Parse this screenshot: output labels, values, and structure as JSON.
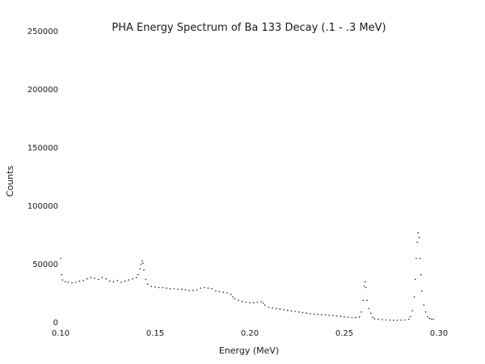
{
  "chart_data": {
    "type": "scatter",
    "title": "PHA Energy Spectrum of Ba 133 Decay (.1 - .3 MeV)",
    "xlabel": "Energy (MeV)",
    "ylabel": "Counts",
    "xlim": [
      0.1,
      0.3
    ],
    "ylim": [
      0,
      250000
    ],
    "x_ticks": [
      "0.10",
      "0.15",
      "0.20",
      "0.25",
      "0.30"
    ],
    "y_ticks": [
      "0",
      "50000",
      "100000",
      "150000",
      "200000",
      "250000"
    ],
    "grid": false,
    "legend": "none",
    "marker_color": "#222222",
    "series": [
      {
        "points": [
          [
            0.1,
            58000
          ],
          [
            0.1005,
            44000
          ],
          [
            0.101,
            39500
          ],
          [
            0.1025,
            38000
          ],
          [
            0.104,
            37500
          ],
          [
            0.106,
            37000
          ],
          [
            0.108,
            37500
          ],
          [
            0.11,
            38500
          ],
          [
            0.112,
            39000
          ],
          [
            0.114,
            40500
          ],
          [
            0.116,
            41500
          ],
          [
            0.118,
            41000
          ],
          [
            0.12,
            40000
          ],
          [
            0.122,
            41500
          ],
          [
            0.124,
            40500
          ],
          [
            0.126,
            38500
          ],
          [
            0.128,
            38000
          ],
          [
            0.13,
            39000
          ],
          [
            0.132,
            37500
          ],
          [
            0.134,
            38500
          ],
          [
            0.136,
            39500
          ],
          [
            0.138,
            40500
          ],
          [
            0.14,
            41500
          ],
          [
            0.141,
            44000
          ],
          [
            0.142,
            49000
          ],
          [
            0.1425,
            53000
          ],
          [
            0.143,
            56000
          ],
          [
            0.1435,
            54000
          ],
          [
            0.144,
            48000
          ],
          [
            0.145,
            40000
          ],
          [
            0.146,
            36000
          ],
          [
            0.148,
            34000
          ],
          [
            0.15,
            33500
          ],
          [
            0.152,
            33000
          ],
          [
            0.154,
            33000
          ],
          [
            0.156,
            32500
          ],
          [
            0.158,
            32000
          ],
          [
            0.16,
            32000
          ],
          [
            0.162,
            31500
          ],
          [
            0.164,
            31500
          ],
          [
            0.166,
            31000
          ],
          [
            0.168,
            30500
          ],
          [
            0.17,
            30500
          ],
          [
            0.172,
            31000
          ],
          [
            0.174,
            32500
          ],
          [
            0.176,
            33000
          ],
          [
            0.178,
            32500
          ],
          [
            0.18,
            32000
          ],
          [
            0.182,
            30000
          ],
          [
            0.184,
            29500
          ],
          [
            0.186,
            29000
          ],
          [
            0.188,
            28500
          ],
          [
            0.19,
            27000
          ],
          [
            0.191,
            25000
          ],
          [
            0.192,
            23500
          ],
          [
            0.194,
            22000
          ],
          [
            0.196,
            21000
          ],
          [
            0.198,
            20500
          ],
          [
            0.2,
            20000
          ],
          [
            0.202,
            20000
          ],
          [
            0.204,
            20500
          ],
          [
            0.206,
            21000
          ],
          [
            0.207,
            19500
          ],
          [
            0.208,
            18000
          ],
          [
            0.21,
            16000
          ],
          [
            0.212,
            15500
          ],
          [
            0.214,
            15000
          ],
          [
            0.216,
            14500
          ],
          [
            0.218,
            14000
          ],
          [
            0.22,
            13500
          ],
          [
            0.222,
            13000
          ],
          [
            0.224,
            12500
          ],
          [
            0.226,
            12000
          ],
          [
            0.228,
            11500
          ],
          [
            0.23,
            11000
          ],
          [
            0.232,
            10500
          ],
          [
            0.234,
            10200
          ],
          [
            0.236,
            10000
          ],
          [
            0.238,
            9800
          ],
          [
            0.24,
            9500
          ],
          [
            0.242,
            9200
          ],
          [
            0.244,
            9000
          ],
          [
            0.246,
            8600
          ],
          [
            0.248,
            8200
          ],
          [
            0.25,
            7800
          ],
          [
            0.252,
            7500
          ],
          [
            0.254,
            7300
          ],
          [
            0.256,
            7200
          ],
          [
            0.258,
            7800
          ],
          [
            0.259,
            12000
          ],
          [
            0.26,
            22000
          ],
          [
            0.2605,
            34000
          ],
          [
            0.261,
            38000
          ],
          [
            0.2615,
            33000
          ],
          [
            0.262,
            22000
          ],
          [
            0.263,
            15000
          ],
          [
            0.264,
            11000
          ],
          [
            0.265,
            7500
          ],
          [
            0.266,
            6200
          ],
          [
            0.268,
            5800
          ],
          [
            0.27,
            5500
          ],
          [
            0.272,
            5200
          ],
          [
            0.274,
            5000
          ],
          [
            0.276,
            4900
          ],
          [
            0.278,
            4900
          ],
          [
            0.28,
            5000
          ],
          [
            0.282,
            5200
          ],
          [
            0.284,
            5800
          ],
          [
            0.285,
            8000
          ],
          [
            0.286,
            13000
          ],
          [
            0.287,
            25000
          ],
          [
            0.2875,
            40000
          ],
          [
            0.288,
            58000
          ],
          [
            0.2885,
            72000
          ],
          [
            0.289,
            80000
          ],
          [
            0.2895,
            76000
          ],
          [
            0.29,
            58000
          ],
          [
            0.2905,
            44000
          ],
          [
            0.291,
            30000
          ],
          [
            0.292,
            18000
          ],
          [
            0.293,
            12000
          ],
          [
            0.294,
            8000
          ],
          [
            0.295,
            6500
          ],
          [
            0.296,
            6000
          ],
          [
            0.297,
            5800
          ]
        ]
      }
    ]
  }
}
